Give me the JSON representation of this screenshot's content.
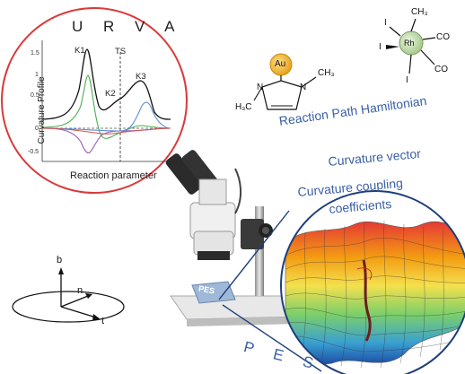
{
  "urva_panel": {
    "title": "U R V A",
    "y_axis_label": "Curvature Profile",
    "x_axis_label": "Reaction parameter",
    "ts_label": "TS",
    "peak_labels": [
      "K1",
      "K2",
      "K3"
    ],
    "y_ticks": [
      "1.5",
      "1",
      "0.5",
      "0",
      "-0.5"
    ]
  },
  "keywords": {
    "reaction_path": "Reaction Path Hamiltonian",
    "curvature_vector": "Curvature vector",
    "coupling_line1": "Curvature coupling",
    "coupling_line2": "coefficients"
  },
  "pes_big_label": "P E S",
  "pes_slide_label": "PES",
  "gold_complex": {
    "metal": "Au",
    "left_group": "H₃C",
    "right_group": "CH₃",
    "n_left": "N",
    "n_right": "N"
  },
  "rh_complex": {
    "metal": "Rh",
    "top": "CH₃",
    "ligand_top_left": "I",
    "ligand_left": "I",
    "ligand_bottom": "I",
    "co_top": "CO",
    "co_bottom": "CO"
  },
  "frenet_frame": {
    "b": "b",
    "n": "n",
    "t": "t"
  },
  "colors": {
    "accent_blue": "#3a5fa4",
    "circle_red": "#d93a3a",
    "curve_black": "#111111",
    "curve_green": "#4caf50",
    "curve_purple": "#9b59b6",
    "curve_blue": "#5b8fd6",
    "gold": "#f1b52f"
  },
  "icons": [
    "microscope-icon",
    "pes-surface-icon",
    "magnifier-lens-icon"
  ]
}
